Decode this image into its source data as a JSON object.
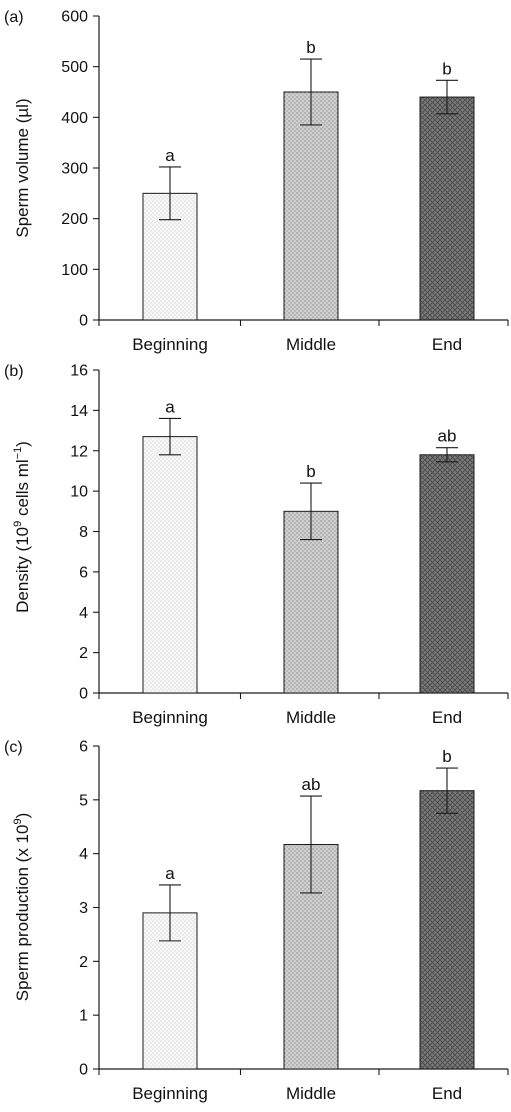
{
  "chart_data": [
    {
      "panel": "(a)",
      "type": "bar",
      "ylabel": "Sperm volume (µl)",
      "categories": [
        "Beginning",
        "Middle",
        "End"
      ],
      "values": [
        250,
        450,
        440
      ],
      "errors": [
        52,
        65,
        33
      ],
      "letters": [
        "a",
        "b",
        "b"
      ],
      "ylim": [
        0,
        600
      ],
      "yticks": [
        0,
        100,
        200,
        300,
        400,
        500,
        600
      ]
    },
    {
      "panel": "(b)",
      "type": "bar",
      "ylabel_base": "Density (10",
      "ylabel_sup1": "9",
      "ylabel_mid": " cells ml",
      "ylabel_sup2": "−1",
      "ylabel_end": ")",
      "categories": [
        "Beginning",
        "Middle",
        "End"
      ],
      "values": [
        12.7,
        9.0,
        11.8
      ],
      "errors": [
        0.9,
        1.4,
        0.35
      ],
      "letters": [
        "a",
        "b",
        "ab"
      ],
      "ylim": [
        0,
        16
      ],
      "yticks": [
        0,
        2,
        4,
        6,
        8,
        10,
        12,
        14,
        16
      ]
    },
    {
      "panel": "(c)",
      "type": "bar",
      "ylabel_base": "Sperm production (x 10",
      "ylabel_sup1": "9",
      "ylabel_end": ")",
      "categories": [
        "Beginning",
        "Middle",
        "End"
      ],
      "values": [
        2.9,
        4.17,
        5.17
      ],
      "errors": [
        0.52,
        0.9,
        0.42
      ],
      "letters": [
        "a",
        "ab",
        "b"
      ],
      "ylim": [
        0,
        6
      ],
      "yticks": [
        0,
        1,
        2,
        3,
        4,
        5,
        6
      ]
    }
  ],
  "colors": {
    "bar_fills": [
      "#f4f4f4",
      "#c9c9c9",
      "#6e6e6e"
    ],
    "bar_stroke": "#1a1a1a",
    "axis": "#1a1a1a"
  }
}
